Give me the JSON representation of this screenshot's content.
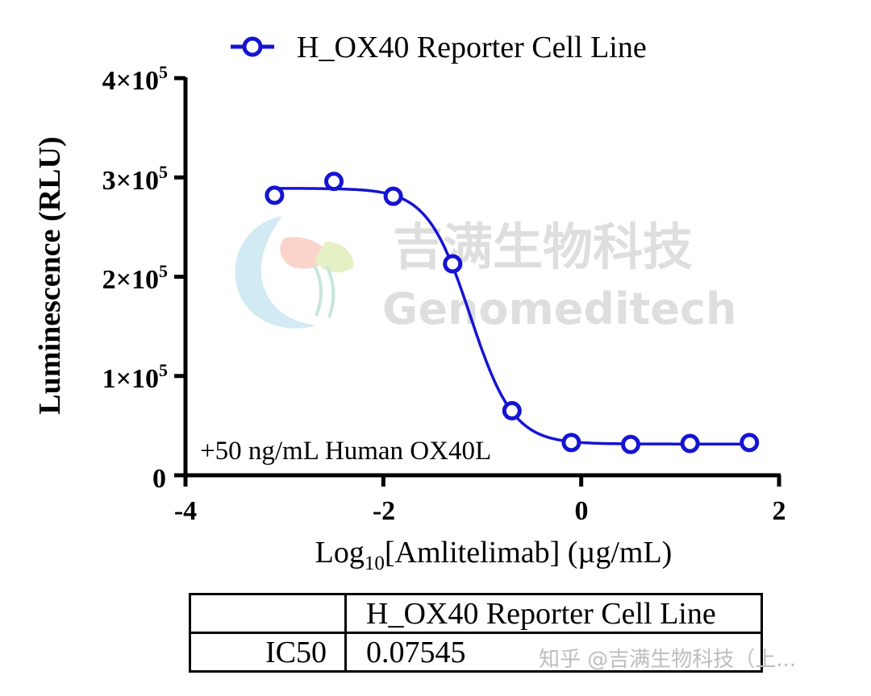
{
  "chart_data": {
    "type": "scatter",
    "legend": {
      "entries": [
        "H_OX40 Reporter Cell Line"
      ],
      "placement": "top"
    },
    "series": [
      {
        "name": "H_OX40 Reporter Cell Line",
        "color": "#1414d2",
        "x": [
          -3.1,
          -2.5,
          -1.9,
          -1.3,
          -0.7,
          -0.1,
          0.5,
          1.1,
          1.7
        ],
        "y": [
          282000,
          296000,
          281000,
          213000,
          65000,
          33000,
          31000,
          32000,
          33000
        ],
        "fit": {
          "model": "4PL",
          "top": 289000,
          "bottom": 31500,
          "log_ic50": -1.12,
          "hill": 2.0
        }
      }
    ],
    "xlabel": {
      "main": "Log",
      "sub": "10",
      "rest": "[Amlitelimab] (µg/mL)"
    },
    "ylabel": "Luminescence (RLU)",
    "xlim": [
      -4,
      2
    ],
    "ylim": [
      0,
      400000
    ],
    "x_ticks": [
      -4,
      -2,
      0,
      2
    ],
    "x_tick_labels": [
      "-4",
      "-2",
      "0",
      "2"
    ],
    "y_ticks": [
      0,
      100000,
      200000,
      300000,
      400000
    ],
    "y_tick_labels": [
      {
        "base": "0",
        "exp": ""
      },
      {
        "base": "1×10",
        "exp": "5"
      },
      {
        "base": "2×10",
        "exp": "5"
      },
      {
        "base": "3×10",
        "exp": "5"
      },
      {
        "base": "4×10",
        "exp": "5"
      }
    ],
    "grid": false,
    "annotation": "+50 ng/mL Human OX40L"
  },
  "logo": {
    "cn": "吉满生物科技",
    "en": "Genomeditech"
  },
  "results_table": {
    "header": [
      "",
      "H_OX40 Reporter Cell Line"
    ],
    "rows": [
      {
        "label": "IC50",
        "value": "0.07545"
      }
    ]
  },
  "watermark": "知乎 @吉满生物科技（上..."
}
